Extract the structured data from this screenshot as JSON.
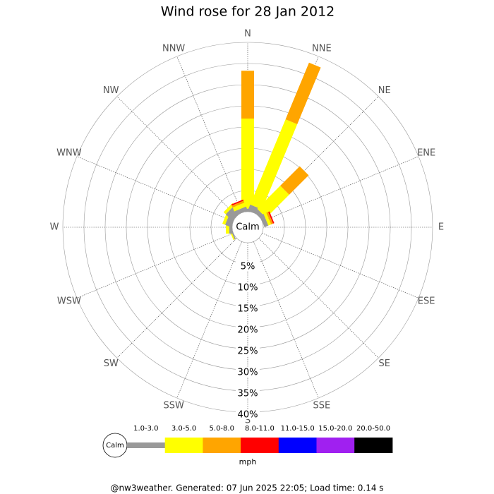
{
  "chart_data": {
    "type": "windrose",
    "title": "Wind rose for 28 Jan 2012",
    "categories": [
      "N",
      "NNE",
      "NE",
      "ENE",
      "E",
      "ESE",
      "SE",
      "SSE",
      "S",
      "SSW",
      "SW",
      "WSW",
      "W",
      "WNW",
      "NW",
      "NNW"
    ],
    "series": [
      {
        "name": "1.0-3.0",
        "color": "#999999",
        "values": [
          0.7,
          1.5,
          1,
          1,
          0,
          0,
          0,
          0,
          0,
          0,
          0,
          0.3,
          0.7,
          1.5,
          2.2,
          1
        ]
      },
      {
        "name": "3.0-5.0",
        "color": "#ffff00",
        "values": [
          21.3,
          21.8,
          7.7,
          0.7,
          0,
          0,
          0,
          0,
          0,
          0,
          0,
          0.3,
          0.8,
          0.7,
          0.7,
          1
        ]
      },
      {
        "name": "5.0-8.0",
        "color": "#ffa500",
        "values": [
          11.3,
          14.5,
          6.5,
          0.5,
          0,
          0,
          0,
          0,
          0,
          0,
          0,
          0,
          0,
          0,
          0,
          0.5
        ]
      },
      {
        "name": "8.0-11.0",
        "color": "#ff0000",
        "values": [
          0,
          0,
          0,
          0.3,
          0,
          0,
          0,
          0,
          0,
          0,
          0,
          0,
          0,
          0,
          0,
          0.3
        ]
      },
      {
        "name": "11.0-15.0",
        "color": "#0000ff",
        "values": [
          0,
          0,
          0,
          0,
          0,
          0,
          0,
          0,
          0,
          0,
          0,
          0,
          0,
          0,
          0,
          0
        ]
      },
      {
        "name": "15.0-20.0",
        "color": "#a020f0",
        "values": [
          0,
          0,
          0,
          0,
          0,
          0,
          0,
          0,
          0,
          0,
          0,
          0,
          0,
          0,
          0,
          0
        ]
      },
      {
        "name": "20.0-50.0",
        "color": "#000000",
        "values": [
          0,
          0,
          0,
          0,
          0,
          0,
          0,
          0,
          0,
          0,
          0,
          0,
          0,
          0,
          0,
          0
        ]
      }
    ],
    "rlim": [
      0,
      40
    ],
    "rticks": [
      {
        "value": 5,
        "label": "5%"
      },
      {
        "value": 10,
        "label": "10%"
      },
      {
        "value": 15,
        "label": "15%"
      },
      {
        "value": 20,
        "label": "20%"
      },
      {
        "value": 25,
        "label": "25%"
      },
      {
        "value": 30,
        "label": "30%"
      },
      {
        "value": 35,
        "label": "35%"
      },
      {
        "value": 40,
        "label": "40%"
      }
    ],
    "calm_label": "Calm",
    "unit": "mph",
    "footer": "@nw3weather. Generated: 07 Jun 2025 22:05; Load time: 0.14 s"
  }
}
